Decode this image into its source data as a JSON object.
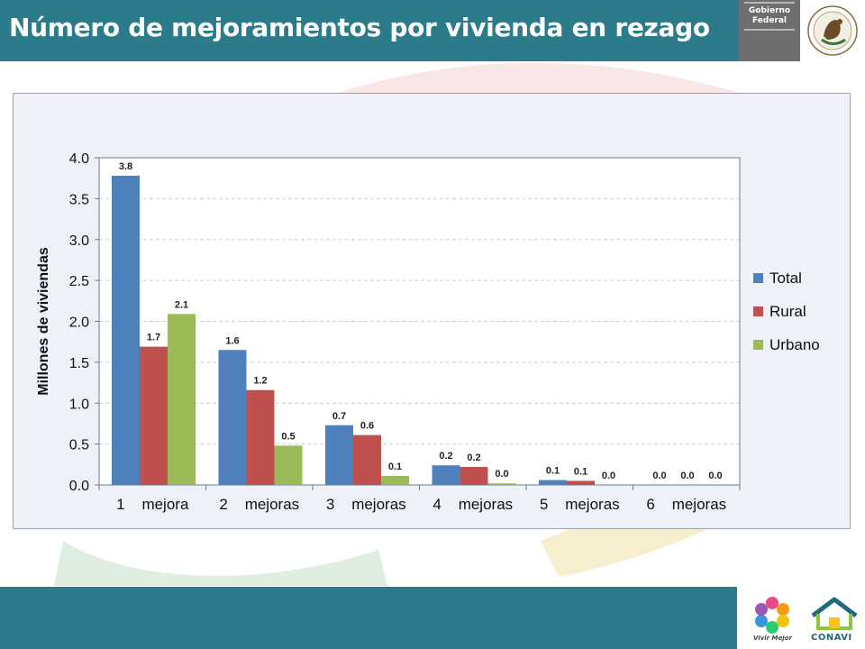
{
  "header": {
    "title": "Número de mejoramientos por vivienda en rezago",
    "gov_line1": "Gobierno",
    "gov_line2": "Federal"
  },
  "footer": {
    "vivir_mejor": "Vivir Mejor",
    "conavi": "CONAVI"
  },
  "colors": {
    "header": "#2b7b8b",
    "total": "#4f81bd",
    "rural": "#c0504d",
    "urbano": "#9bbb59"
  },
  "chart_data": {
    "type": "bar",
    "ylabel": "Millones de viviendas",
    "ylim": [
      0,
      4.0
    ],
    "yticks": [
      "0.0",
      "0.5",
      "1.0",
      "1.5",
      "2.0",
      "2.5",
      "3.0",
      "3.5",
      "4.0"
    ],
    "categories": [
      "1    mejora",
      "2    mejoras",
      "3    mejoras",
      "4    mejoras",
      "5    mejoras",
      "6    mejoras"
    ],
    "grid": true,
    "legend_position": "right",
    "series": [
      {
        "name": "Total",
        "color": "#4f81bd",
        "values": [
          3.78,
          1.65,
          0.73,
          0.24,
          0.06,
          0.0
        ],
        "labels": [
          "3.8",
          "1.6",
          "0.7",
          "0.2",
          "0.1",
          "0.0"
        ]
      },
      {
        "name": "Rural",
        "color": "#c0504d",
        "values": [
          1.69,
          1.16,
          0.61,
          0.22,
          0.05,
          0.0
        ],
        "labels": [
          "1.7",
          "1.2",
          "0.6",
          "0.2",
          "0.1",
          "0.0"
        ]
      },
      {
        "name": "Urbano",
        "color": "#9bbb59",
        "values": [
          2.09,
          0.48,
          0.11,
          0.02,
          0.0,
          0.0
        ],
        "labels": [
          "2.1",
          "0.5",
          "0.1",
          "0.0",
          "0.0",
          "0.0"
        ]
      }
    ]
  }
}
